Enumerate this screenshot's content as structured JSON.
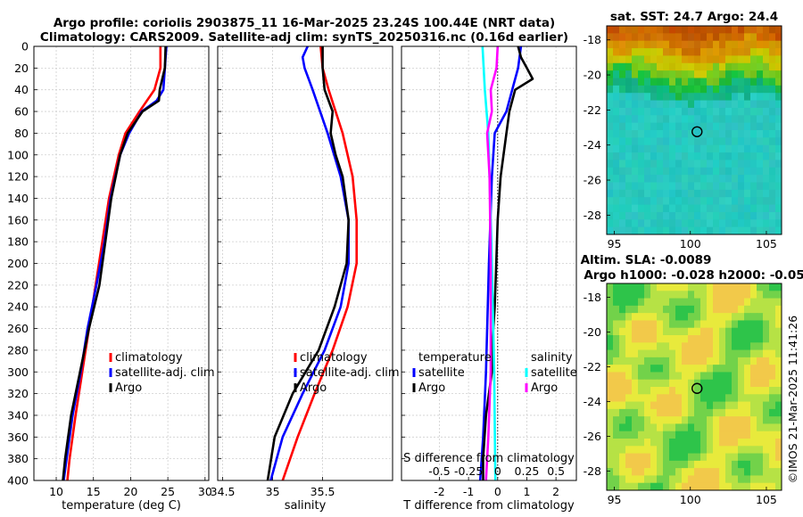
{
  "header": {
    "line1": "Argo profile: coriolis 2903875_11 16-Mar-2025 23.24S 100.44E (NRT data)",
    "line2": "Climatology: CARS2009. Satellite-adj clim: synTS_20250316.nc (0.16d earlier)"
  },
  "depth_ticks": [
    0,
    20,
    40,
    60,
    80,
    100,
    120,
    140,
    160,
    180,
    200,
    220,
    240,
    260,
    280,
    300,
    320,
    340,
    360,
    380,
    400
  ],
  "chart_data": [
    {
      "type": "line",
      "id": "temperature",
      "xlabel": "temperature (deg C)",
      "xlim": [
        7,
        30.5
      ],
      "xticks": [
        10,
        15,
        20,
        25,
        30
      ],
      "ylim": [
        0,
        400
      ],
      "ylabel": "depth",
      "legend": [
        "climatology",
        "satellite-adj. clim",
        "Argo"
      ],
      "series": [
        {
          "name": "climatology",
          "color": "#ff0000",
          "depth": [
            0,
            20,
            40,
            60,
            80,
            100,
            140,
            180,
            220,
            260,
            300,
            340,
            380,
            400
          ],
          "values": [
            24,
            24,
            23.2,
            21.2,
            19.3,
            18.4,
            17.1,
            16.2,
            15.3,
            14.4,
            13.5,
            12.6,
            11.8,
            11.5
          ]
        },
        {
          "name": "satellite-adj. clim",
          "color": "#0000ff",
          "depth": [
            0,
            20,
            40,
            50,
            60,
            80,
            100,
            140,
            180,
            220,
            260,
            300,
            340,
            380,
            400
          ],
          "values": [
            24.8,
            24.6,
            24.4,
            23.5,
            21.5,
            19.8,
            18.6,
            17.3,
            16.5,
            15.4,
            14.2,
            13.3,
            12.2,
            11.4,
            11
          ]
        },
        {
          "name": "Argo",
          "color": "#000000",
          "depth": [
            0,
            20,
            40,
            50,
            60,
            80,
            100,
            140,
            180,
            220,
            260,
            300,
            340,
            380,
            400
          ],
          "values": [
            24.7,
            24.6,
            23.9,
            23.8,
            21.6,
            19.6,
            18.6,
            17.4,
            16.6,
            15.8,
            14.4,
            13.2,
            12.0,
            11.2,
            10.9
          ]
        }
      ]
    },
    {
      "type": "line",
      "id": "salinity",
      "xlabel": "salinity",
      "xlim": [
        34.45,
        36.2
      ],
      "xticks": [
        34.5,
        35,
        35.5
      ],
      "xtick_labels": [
        "34.5",
        "35",
        "35.5"
      ],
      "ylim": [
        0,
        400
      ],
      "legend": [
        "climatology",
        "satellite-adj. clim",
        "Argo"
      ],
      "series": [
        {
          "name": "climatology",
          "color": "#ff0000",
          "depth": [
            0,
            20,
            40,
            80,
            120,
            160,
            200,
            240,
            280,
            320,
            360,
            400
          ],
          "values": [
            35.48,
            35.5,
            35.56,
            35.7,
            35.8,
            35.84,
            35.84,
            35.75,
            35.6,
            35.42,
            35.25,
            35.1
          ]
        },
        {
          "name": "satellite-adj. clim",
          "color": "#0000ff",
          "depth": [
            0,
            10,
            20,
            40,
            80,
            120,
            160,
            200,
            240,
            280,
            320,
            360,
            400
          ],
          "values": [
            35.35,
            35.3,
            35.32,
            35.4,
            35.55,
            35.68,
            35.76,
            35.76,
            35.68,
            35.52,
            35.3,
            35.1,
            34.98
          ]
        },
        {
          "name": "Argo",
          "color": "#000000",
          "depth": [
            0,
            20,
            40,
            60,
            80,
            100,
            120,
            160,
            200,
            240,
            280,
            320,
            360,
            400
          ],
          "values": [
            35.5,
            35.5,
            35.52,
            35.6,
            35.58,
            35.63,
            35.7,
            35.76,
            35.74,
            35.62,
            35.46,
            35.2,
            35.02,
            34.95
          ]
        }
      ]
    },
    {
      "type": "line",
      "id": "difference",
      "xlabel": "T difference from climatology",
      "xlabel_top": "S difference from climatology",
      "xlim": [
        -3.3,
        2.7
      ],
      "xticks": [
        -2,
        -1,
        0,
        1,
        2
      ],
      "top_xticks": [
        -0.5,
        -0.25,
        0,
        0.25,
        0.5
      ],
      "top_xtick_labels": [
        "-0.5",
        "-0.25",
        "0",
        "0.25",
        "0.5"
      ],
      "ylim": [
        0,
        400
      ],
      "legend_left_title": "temperature",
      "legend_right_title": "salinity",
      "legend_left": [
        "satellite",
        "Argo"
      ],
      "legend_right": [
        "satellite",
        "Argo"
      ],
      "series": [
        {
          "name": "T satellite",
          "color": "#0000ff",
          "depth": [
            0,
            20,
            40,
            60,
            80,
            120,
            200,
            300,
            360,
            400
          ],
          "values": [
            0.8,
            0.7,
            0.5,
            0.3,
            -0.1,
            -0.2,
            -0.3,
            -0.4,
            -0.5,
            -0.6
          ]
        },
        {
          "name": "T Argo",
          "color": "#000000",
          "depth": [
            0,
            10,
            20,
            30,
            40,
            60,
            80,
            120,
            160,
            200,
            240,
            280,
            300,
            340,
            380,
            400
          ],
          "values": [
            0.7,
            0.8,
            1.0,
            1.2,
            0.6,
            0.4,
            0.3,
            0.1,
            0.0,
            -0.05,
            -0.1,
            -0.2,
            -0.2,
            -0.4,
            -0.5,
            -0.5
          ]
        },
        {
          "name": "S satellite",
          "color": "#00ffff",
          "depth": [
            0,
            20,
            40,
            80,
            120,
            200,
            300,
            400
          ],
          "values": [
            -0.13,
            -0.12,
            -0.11,
            -0.08,
            -0.07,
            -0.05,
            -0.03,
            -0.02
          ]
        },
        {
          "name": "S Argo",
          "color": "#ff00ff",
          "depth": [
            0,
            20,
            40,
            60,
            80,
            120,
            200,
            300,
            360,
            400
          ],
          "values": [
            0.0,
            -0.01,
            -0.06,
            -0.05,
            -0.09,
            -0.07,
            -0.06,
            -0.06,
            -0.08,
            -0.1
          ]
        }
      ]
    },
    {
      "type": "heatmap",
      "id": "sst-map",
      "title": "sat. SST: 24.7 Argo: 24.4",
      "xlim": [
        94.5,
        106
      ],
      "ylim": [
        -29.1,
        -17.2
      ],
      "xticks": [
        95,
        100,
        105
      ],
      "yticks": [
        -18,
        -20,
        -22,
        -24,
        -26,
        -28
      ],
      "marker": {
        "lon": 100.44,
        "lat": -23.24
      }
    },
    {
      "type": "heatmap",
      "id": "sla-map",
      "title": "Altim. SLA: -0.0089",
      "subtitle": "Argo h1000: -0.028 h2000: -0.05",
      "xlim": [
        94.5,
        106
      ],
      "ylim": [
        -29.1,
        -17.2
      ],
      "xticks": [
        95,
        100,
        105
      ],
      "yticks": [
        -18,
        -20,
        -22,
        -24,
        -26,
        -28
      ],
      "marker": {
        "lon": 100.44,
        "lat": -23.24
      }
    }
  ],
  "footer": {
    "credit": "©IMOS 21-Mar-2025 11:41:26"
  }
}
